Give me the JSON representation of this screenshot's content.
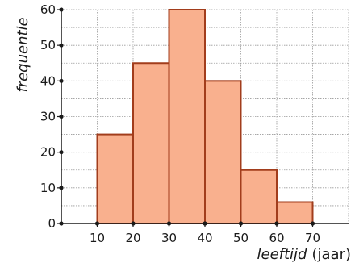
{
  "chart_data": {
    "type": "bar",
    "title": "",
    "xlabel_italic": "leeftijd",
    "xlabel_unit": "(jaar)",
    "ylabel": "frequentie",
    "bins": [
      {
        "from": 10,
        "to": 20,
        "value": 25
      },
      {
        "from": 20,
        "to": 30,
        "value": 45
      },
      {
        "from": 30,
        "to": 40,
        "value": 60
      },
      {
        "from": 40,
        "to": 50,
        "value": 40
      },
      {
        "from": 50,
        "to": 60,
        "value": 15
      },
      {
        "from": 60,
        "to": 70,
        "value": 6
      }
    ],
    "xlim": [
      0,
      80
    ],
    "ylim": [
      0,
      60
    ],
    "xticks": [
      10,
      20,
      30,
      40,
      50,
      60,
      70
    ],
    "yticks": [
      0,
      10,
      20,
      30,
      40,
      50,
      60
    ],
    "grid": true,
    "colors": {
      "bar_fill": "#f9b08e",
      "bar_stroke": "#a23d1c",
      "grid": "#9a9a9a",
      "axis": "#1a1a1a"
    }
  }
}
